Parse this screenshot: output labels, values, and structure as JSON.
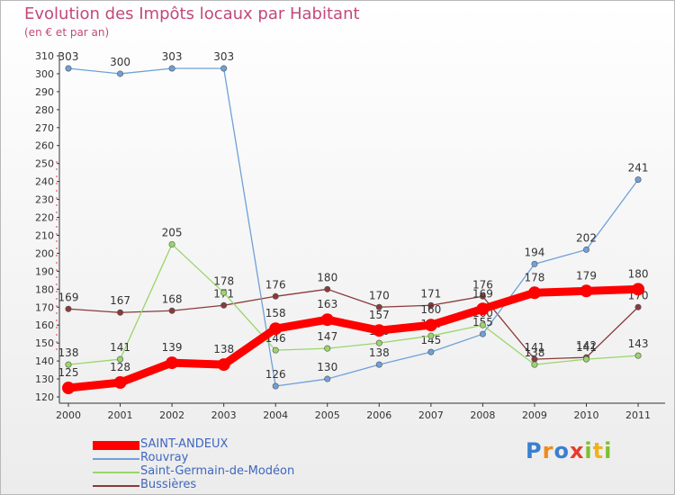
{
  "header": {
    "title": "Evolution des Impôts locaux par Habitant",
    "subtitle": "(en € et par an)"
  },
  "chart_data": {
    "type": "line",
    "title": "Evolution des Impôts locaux par Habitant",
    "subtitle": "(en € et par an)",
    "xlabel": "",
    "ylabel": "",
    "x": [
      "2000",
      "2001",
      "2002",
      "2003",
      "2004",
      "2005",
      "2006",
      "2007",
      "2008",
      "2009",
      "2010",
      "2011"
    ],
    "ylim": [
      120,
      310
    ],
    "yticks": [
      120,
      130,
      140,
      150,
      160,
      170,
      180,
      190,
      200,
      210,
      220,
      230,
      240,
      250,
      260,
      270,
      280,
      290,
      300,
      310
    ],
    "grid": false,
    "legend_position": "bottom-left",
    "series": [
      {
        "name": "SAINT-ANDEUX",
        "color": "#ff0000",
        "values": [
          125,
          128,
          139,
          138,
          158,
          163,
          157,
          160,
          169,
          178,
          179,
          180
        ]
      },
      {
        "name": "Rouvray",
        "color": "#6fa0d8",
        "values": [
          303,
          300,
          303,
          303,
          126,
          130,
          138,
          145,
          155,
          194,
          202,
          241
        ]
      },
      {
        "name": "Saint-Germain-de-Modéon",
        "color": "#99d66a",
        "values": [
          138,
          141,
          205,
          178,
          146,
          147,
          150,
          154,
          160,
          138,
          141,
          143
        ]
      },
      {
        "name": "Bussières",
        "color": "#8a3a3a",
        "values": [
          169,
          167,
          168,
          171,
          176,
          180,
          170,
          171,
          176,
          141,
          142,
          170
        ]
      }
    ]
  },
  "logo": {
    "letters": [
      "P",
      "r",
      "o",
      "x",
      "i",
      "t",
      "i"
    ],
    "colors": [
      "#3a7fd0",
      "#f08a1c",
      "#3a7fd0",
      "#e83c2c",
      "#7fbf2f",
      "#f0b21c",
      "#7fbf2f"
    ]
  }
}
